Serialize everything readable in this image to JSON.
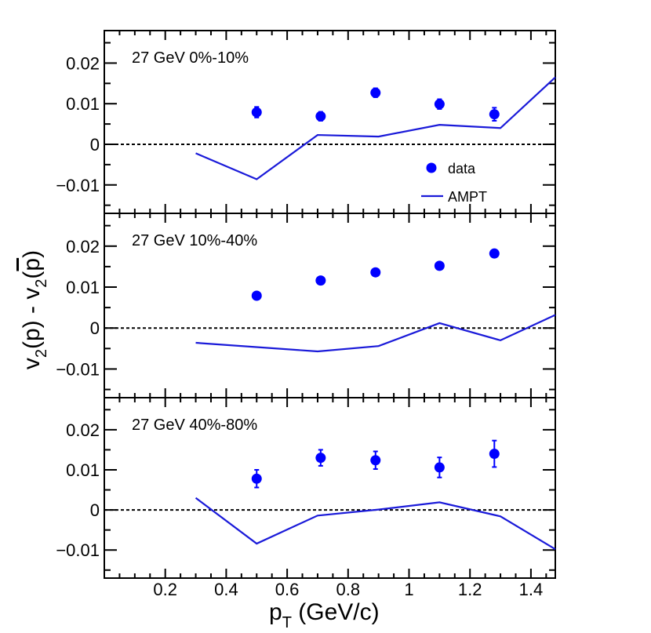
{
  "chart_data": {
    "type": "scatter",
    "title": "",
    "xlabel_main": "p",
    "xlabel_sub": "T",
    "xlabel_rest": " (GeV/c)",
    "ylabel_a": "v",
    "ylabel_a_sub": "2",
    "ylabel_b": "(p) - v",
    "ylabel_b_sub": "2",
    "ylabel_c": "(",
    "ylabel_pbar": "p",
    "ylabel_d": ")",
    "xlim": [
      0.0,
      1.48
    ],
    "ylim": [
      -0.017,
      0.028
    ],
    "x_ticks": [
      0.2,
      0.4,
      0.6,
      0.8,
      1.0,
      1.2,
      1.4
    ],
    "x_tick_labels": [
      "0.2",
      "0.4",
      "0.6",
      "0.8",
      "1",
      "1.2",
      "1.4"
    ],
    "y_ticks": [
      -0.01,
      0,
      0.01,
      0.02
    ],
    "y_tick_labels": [
      "−0.01",
      "0",
      "0.01",
      "0.02"
    ],
    "legend": {
      "data_label": "data",
      "model_label": "AMPT",
      "placement": "bottom-right of top panel"
    },
    "colors": {
      "data": "#0000ff",
      "model": "#1a1ad9",
      "zero_line": "#000000"
    },
    "panels": [
      {
        "label": "27 GeV 0%-10%",
        "data": {
          "x": [
            0.5,
            0.71,
            0.89,
            1.1,
            1.28
          ],
          "y": [
            0.0079,
            0.0069,
            0.0127,
            0.0099,
            0.0074
          ],
          "err": [
            0.0013,
            0.0011,
            0.0011,
            0.0012,
            0.0016
          ]
        },
        "ampt": {
          "x": [
            0.3,
            0.5,
            0.7,
            0.9,
            1.1,
            1.3,
            1.48
          ],
          "y": [
            -0.0022,
            -0.0086,
            0.0023,
            0.0019,
            0.0048,
            0.004,
            0.0165
          ]
        }
      },
      {
        "label": "27 GeV 10%-40%",
        "data": {
          "x": [
            0.5,
            0.71,
            0.89,
            1.1,
            1.28
          ],
          "y": [
            0.0079,
            0.0116,
            0.0136,
            0.0152,
            0.0182
          ],
          "err": [
            0.0005,
            0.0005,
            0.0005,
            0.0006,
            0.0007
          ]
        },
        "ampt": {
          "x": [
            0.3,
            0.7,
            0.9,
            1.1,
            1.3,
            1.48
          ],
          "y": [
            -0.0036,
            -0.0057,
            -0.0044,
            0.0012,
            -0.003,
            0.0032
          ]
        }
      },
      {
        "label": "27 GeV 40%-80%",
        "data": {
          "x": [
            0.5,
            0.71,
            0.89,
            1.1,
            1.28
          ],
          "y": [
            0.0078,
            0.013,
            0.0124,
            0.0106,
            0.014
          ],
          "err": [
            0.0022,
            0.002,
            0.0022,
            0.0025,
            0.0033
          ]
        },
        "ampt": {
          "x": [
            0.3,
            0.5,
            0.7,
            0.9,
            1.1,
            1.3,
            1.48
          ],
          "y": [
            0.003,
            -0.0084,
            -0.0014,
            0.0001,
            0.0019,
            -0.0016,
            -0.0098
          ]
        }
      }
    ]
  }
}
